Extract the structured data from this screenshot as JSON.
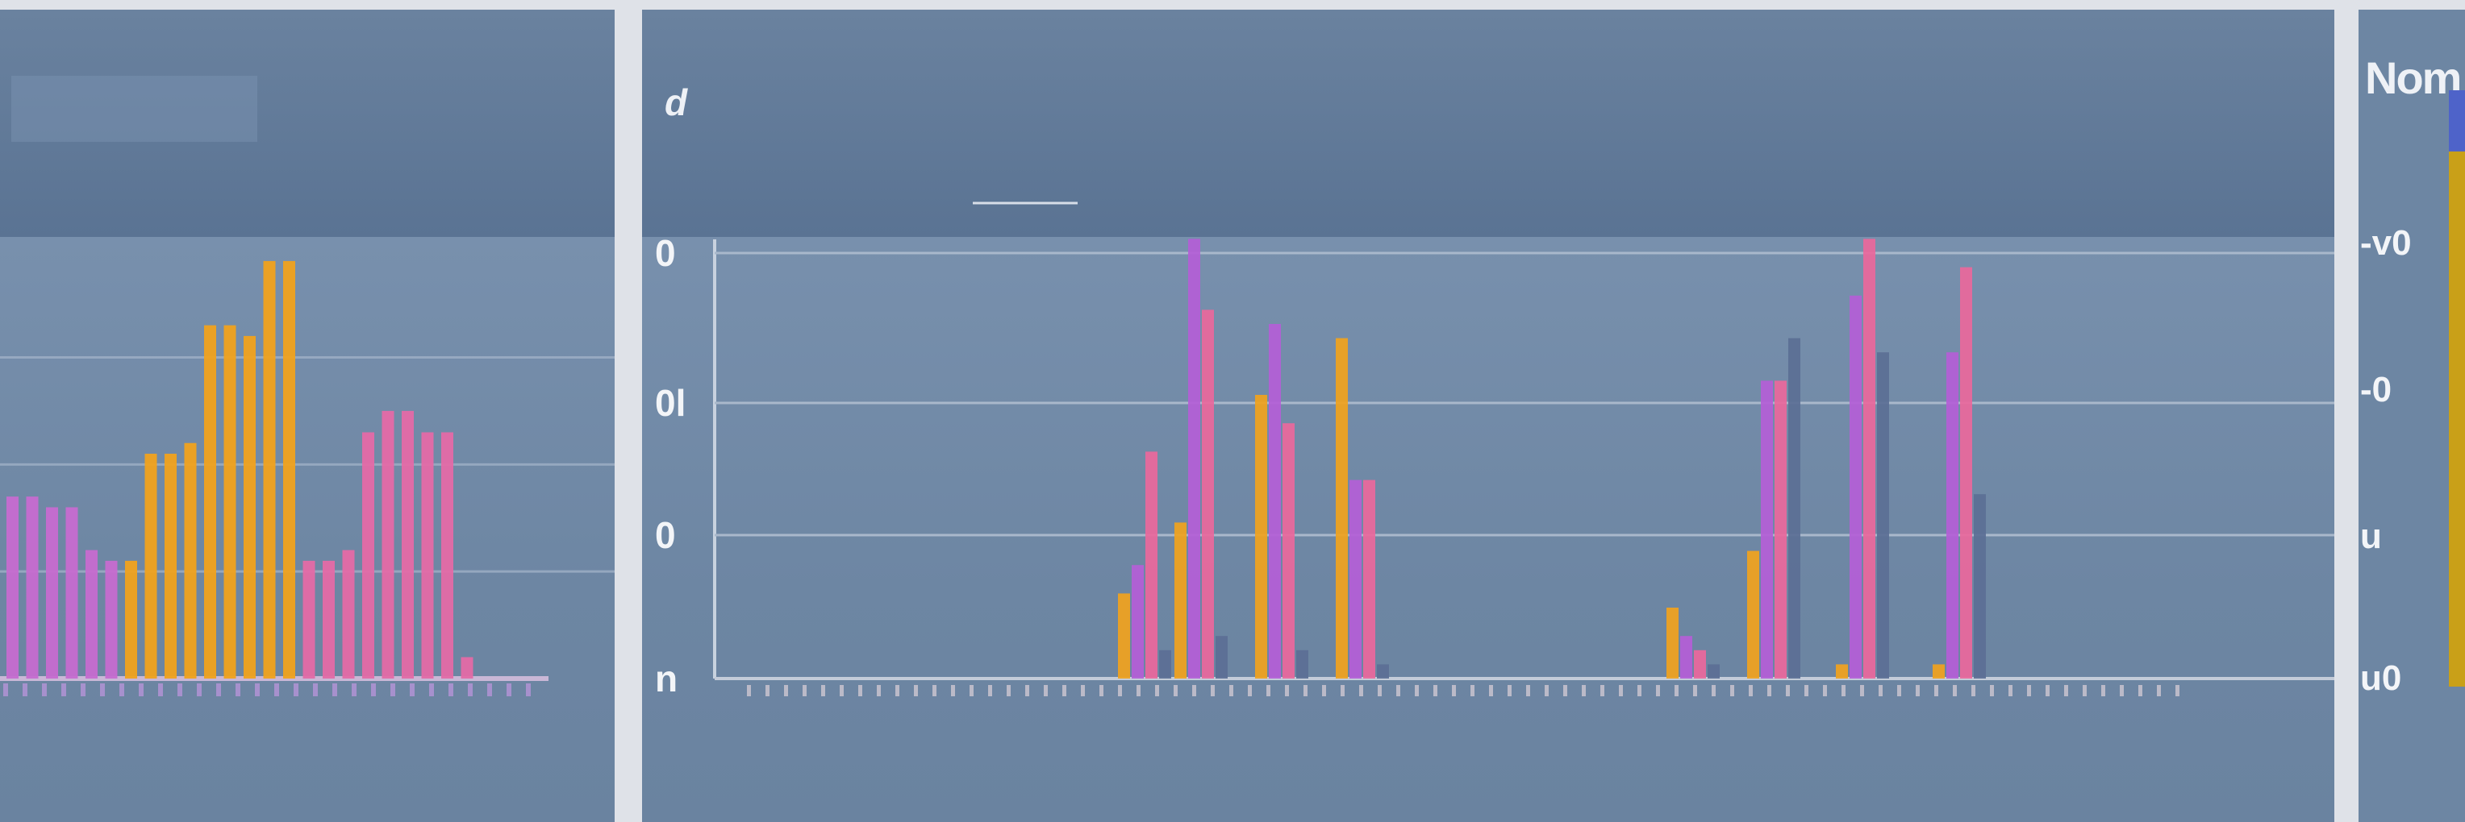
{
  "panels": {
    "left": {
      "title": ""
    },
    "center": {
      "title": "d"
    },
    "right": {
      "title": "Nom"
    }
  },
  "chart_data": [
    {
      "type": "bar",
      "title": "",
      "xlabel": "",
      "ylabel": "",
      "y_tick_labels": [],
      "ylim": [
        0,
        4
      ],
      "grid": true,
      "series": [
        {
          "color": "#c66cd0",
          "values": [
            1.7,
            1.7,
            1.6,
            1.6,
            1.2,
            1.1,
            0,
            0,
            0,
            0,
            0,
            0,
            0,
            0,
            0,
            0,
            0,
            0,
            0,
            0,
            0,
            0,
            0,
            0,
            0,
            0,
            0
          ]
        },
        {
          "color": "#f0a21e",
          "values": [
            0,
            0,
            0,
            0,
            0,
            0,
            1.1,
            2.1,
            2.1,
            2.2,
            3.3,
            3.3,
            3.2,
            3.9,
            3.9,
            0,
            0,
            0,
            0,
            0,
            0,
            0,
            0,
            0,
            0,
            0,
            0
          ]
        },
        {
          "color": "#e46aa7",
          "values": [
            0,
            0,
            0,
            0,
            0,
            0,
            0,
            0,
            0,
            0,
            0,
            0,
            0,
            0,
            0,
            1.1,
            1.1,
            1.2,
            2.3,
            2.5,
            2.5,
            2.3,
            2.3,
            0.2,
            0,
            0,
            0
          ]
        }
      ]
    },
    {
      "type": "bar",
      "title": "",
      "xlabel": "",
      "ylabel": "",
      "y_tick_labels": [
        "n",
        "0",
        "0l",
        "0"
      ],
      "ylim": [
        0,
        3.4
      ],
      "grid": true,
      "series": [
        {
          "color": "#f0a21e",
          "values": [
            0.6,
            1.1,
            2.0,
            2.4,
            0.5,
            0.9,
            0.1,
            0.1
          ]
        },
        {
          "color": "#b45fd6",
          "values": [
            0.8,
            3.1,
            2.5,
            1.4,
            0.3,
            2.1,
            2.7,
            2.3
          ]
        },
        {
          "color": "#e9689c",
          "values": [
            1.6,
            2.6,
            1.8,
            1.4,
            0.2,
            2.1,
            3.1,
            2.9
          ]
        },
        {
          "color": "#5b6f95",
          "values": [
            0.2,
            0.3,
            0.2,
            0.1,
            0.1,
            2.4,
            2.3,
            1.3
          ]
        }
      ]
    },
    {
      "type": "bar",
      "title": "",
      "xlabel": "",
      "ylabel": "",
      "y_tick_labels": [
        "u0",
        "u",
        "-0",
        "-v0"
      ],
      "grid": true,
      "series": [
        {
          "color": "#4e63c9",
          "values": [
            0.4
          ]
        },
        {
          "color": "#c9a018",
          "values": [
            3.5
          ]
        }
      ]
    }
  ]
}
